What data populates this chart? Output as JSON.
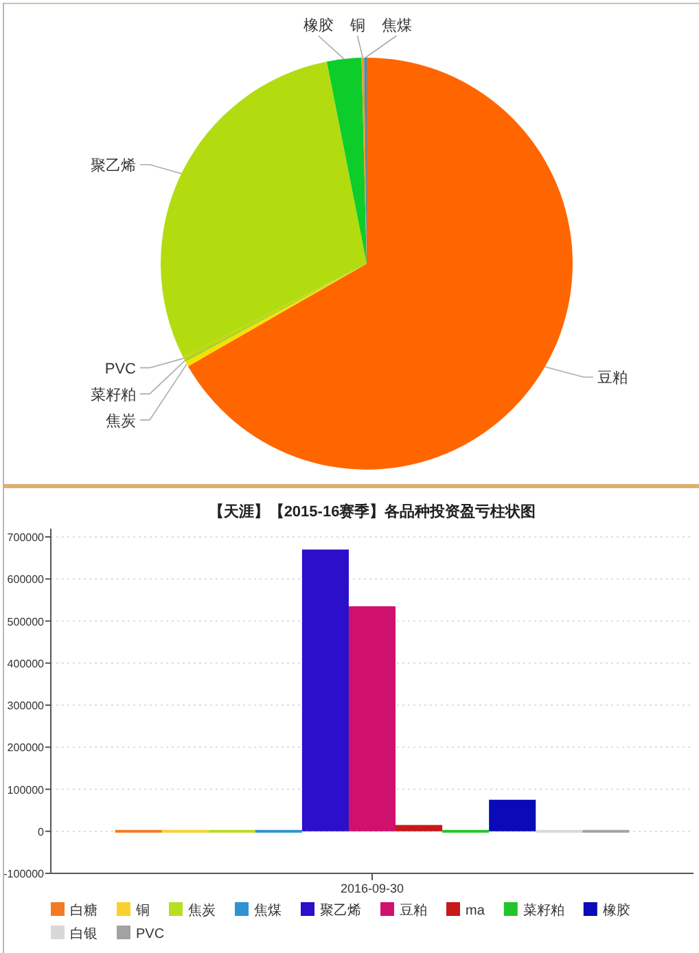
{
  "chart_data": [
    {
      "type": "pie",
      "categories": [
        "豆粕",
        "焦炭",
        "菜籽粕",
        "PVC",
        "聚乙烯",
        "橡胶",
        "铜",
        "焦煤"
      ],
      "values": [
        66.7,
        0.4,
        0.2,
        0.2,
        29.4,
        2.7,
        0.2,
        0.2
      ],
      "colors": [
        "#ff6600",
        "#f5e100",
        "#9fd22a",
        "#c7d400",
        "#b2dc10",
        "#0ccd2a",
        "#f29a1e",
        "#2f93cf"
      ]
    },
    {
      "type": "bar",
      "title": "【天涯】【2015-16赛季】各品种投资盈亏柱状图",
      "categories": [
        "2016-09-30"
      ],
      "series": [
        {
          "name": "白糖",
          "color": "#f47a22",
          "values": [
            0
          ]
        },
        {
          "name": "铜",
          "color": "#f8d12e",
          "values": [
            0
          ]
        },
        {
          "name": "焦炭",
          "color": "#b6de22",
          "values": [
            0
          ]
        },
        {
          "name": "焦煤",
          "color": "#2f93cf",
          "values": [
            0
          ]
        },
        {
          "name": "聚乙烯",
          "color": "#2b0fcb",
          "values": [
            670000
          ]
        },
        {
          "name": "豆粕",
          "color": "#d0106d",
          "values": [
            535000
          ]
        },
        {
          "name": "ma",
          "color": "#c8181a",
          "values": [
            15000
          ]
        },
        {
          "name": "菜籽粕",
          "color": "#22c42a",
          "values": [
            0
          ]
        },
        {
          "name": "橡胶",
          "color": "#0a0ab8",
          "values": [
            75000
          ]
        },
        {
          "name": "白银",
          "color": "#d8d8d8",
          "values": [
            0
          ]
        },
        {
          "name": "PVC",
          "color": "#a2a2a2",
          "values": [
            0
          ]
        }
      ],
      "ylim": [
        -100000,
        700000
      ],
      "yticks": [
        -100000,
        0,
        100000,
        200000,
        300000,
        400000,
        500000,
        600000,
        700000
      ],
      "grid": "y",
      "legend": "bottom"
    }
  ]
}
